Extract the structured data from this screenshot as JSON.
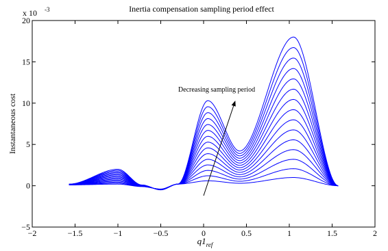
{
  "chart_data": {
    "type": "line",
    "title": "Inertia compensation sampling period effect",
    "xlabel": "q1_ref",
    "xlabel_main": "q1",
    "xlabel_sub": "ref",
    "ylabel": "Instantaneous cost",
    "y_multiplier": "x 10",
    "y_multiplier_exp": "-3",
    "xlim": [
      -2,
      2
    ],
    "ylim": [
      -5,
      20
    ],
    "x_ticks": [
      -2,
      -1.5,
      -1,
      -0.5,
      0,
      0.5,
      1,
      1.5,
      2
    ],
    "y_ticks": [
      -5,
      0,
      5,
      10,
      15,
      20
    ],
    "x_tick_labels": [
      "−2",
      "−1.5",
      "−1",
      "−0.5",
      "0",
      "0.5",
      "1",
      "1.5",
      "2"
    ],
    "y_tick_labels": [
      "−5",
      "0",
      "5",
      "10",
      "15",
      "20"
    ],
    "grid": false,
    "legend": "none",
    "line_color": "#0000ff",
    "x_range": [
      -1.5708,
      1.5708
    ],
    "num_curves": 15,
    "envelope_points": {
      "x": [
        -1.5708,
        -1.0,
        -0.72,
        -0.5,
        -0.3,
        0.05,
        0.42,
        1.05,
        1.5708
      ],
      "y_top_curve": [
        0.2,
        2.0,
        0.1,
        -0.5,
        0.2,
        10.3,
        4.2,
        18.0,
        0.0
      ],
      "y_bottom_curve": [
        0.1,
        0.2,
        -0.1,
        -0.4,
        0.2,
        0.6,
        0.3,
        1.0,
        0.0
      ]
    },
    "annotation": {
      "text": "Decreasing sampling period",
      "arrow_from": [
        0.0,
        -1.2
      ],
      "arrow_to": [
        0.37,
        10.3
      ]
    }
  }
}
